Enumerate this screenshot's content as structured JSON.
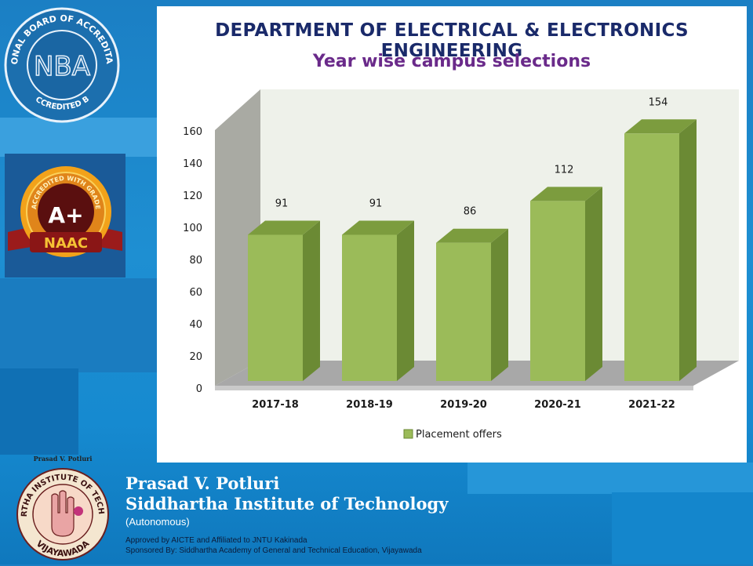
{
  "header": {
    "department": "DEPARTMENT OF ELECTRICAL & ELECTRONICS ENGINEERING",
    "subtitle": "Year wise campus selections"
  },
  "badges": {
    "nba_ring_top": "NATIONAL BOARD OF ACCREDITATION",
    "nba_ring_bottom": "ACCREDITED BY",
    "nba_mark": "NBA",
    "naac_ring": "ACCREDITED WITH GRADE",
    "naac_grade": "A+",
    "naac_name": "NAAC"
  },
  "footer": {
    "logo_caption": "Prasad V. Potluri",
    "logo_ring_top": "SIDDHARTHA INSTITUTE OF TECHNOLOGY",
    "logo_ring_bottom": "VIJAYAWADA",
    "name_line1": "Prasad V. Potluri",
    "name_line2": "Siddhartha Institute of Technology",
    "autonomous": "(Autonomous)",
    "approved": "Approved by AICTE and Affiliated to JNTU Kakinada",
    "sponsored": "Sponsored By: Siddhartha Academy of General and Technical Education, Vijayawada"
  },
  "colors": {
    "bar_front": "#9bbb59",
    "bar_side": "#6b8a34",
    "bar_top": "#7c9c3e",
    "title_blue": "#1a2a6a",
    "subtitle_purple": "#6a2a8a",
    "background_blue": "#1e8fd2"
  },
  "chart_data": {
    "type": "bar",
    "style": "3d-column",
    "categories": [
      "2017-18",
      "2018-19",
      "2019-20",
      "2020-21",
      "2021-22"
    ],
    "series": [
      {
        "name": "Placement offers",
        "values": [
          91,
          91,
          86,
          112,
          154
        ]
      }
    ],
    "data_labels": [
      "91",
      "91",
      "86",
      "112",
      "154"
    ],
    "y_ticks": [
      "0",
      "20",
      "40",
      "60",
      "80",
      "100",
      "120",
      "140",
      "160"
    ],
    "ylim": [
      0,
      160
    ],
    "grid": false,
    "legend": "bottom"
  }
}
